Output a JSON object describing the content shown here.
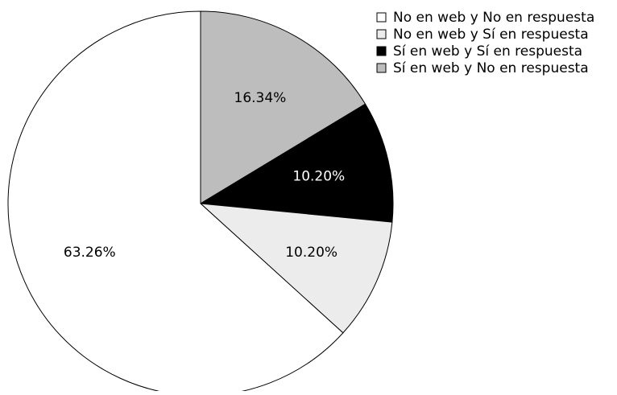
{
  "chart_data": {
    "type": "pie",
    "title": "",
    "start_angle_deg": 90,
    "direction": "clockwise",
    "slices": [
      {
        "label": "Sí en web y No en respuesta",
        "value": 16.34,
        "display": "16.34%",
        "color": "#bdbdbd",
        "text_color": "#000000"
      },
      {
        "label": "Sí en web y Sí en respuesta",
        "value": 10.2,
        "display": "10.20%",
        "color": "#000000",
        "text_color": "#ffffff"
      },
      {
        "label": "No en web y Sí en respuesta",
        "value": 10.2,
        "display": "10.20%",
        "color": "#ececec",
        "text_color": "#000000"
      },
      {
        "label": "No en web y No en respuesta",
        "value": 63.26,
        "display": "63.26%",
        "color": "#ffffff",
        "text_color": "#000000"
      }
    ],
    "legend": {
      "placement": "top-right",
      "items": [
        {
          "label": "No en web y No en respuesta",
          "color": "#ffffff"
        },
        {
          "label": "No en web y Sí en respuesta",
          "color": "#ececec"
        },
        {
          "label": "Sí en web y Sí en respuesta",
          "color": "#000000"
        },
        {
          "label": "Sí en web y No en respuesta",
          "color": "#bdbdbd"
        }
      ]
    }
  }
}
